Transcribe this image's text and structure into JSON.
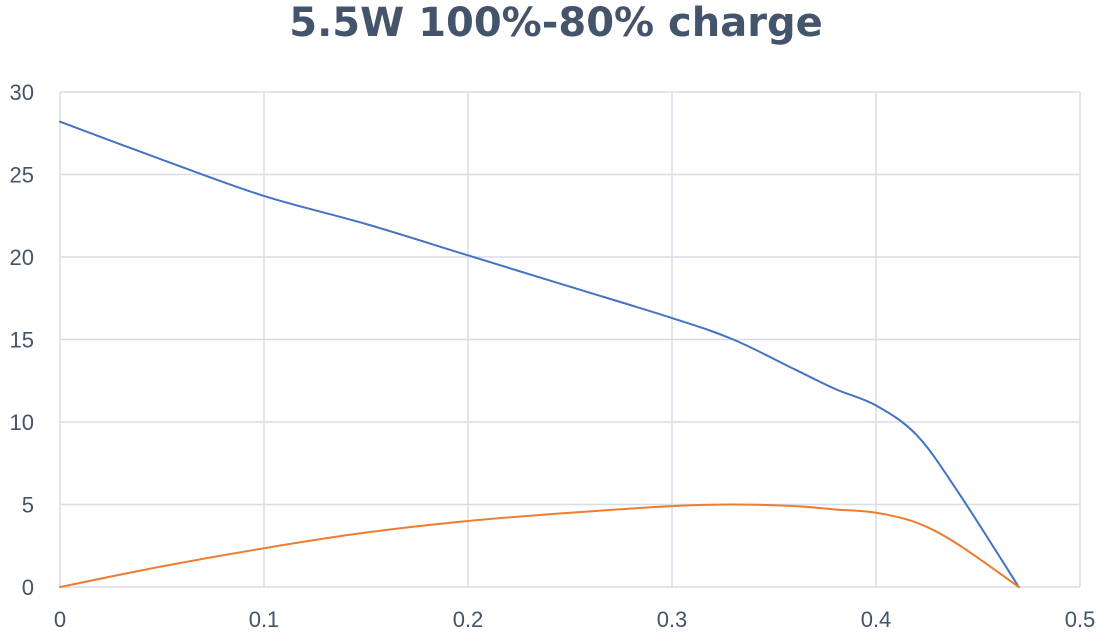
{
  "chart_data": {
    "type": "line",
    "title": "5.5W 100%-80% charge",
    "xlabel": "",
    "ylabel": "",
    "xlim": [
      0,
      0.5
    ],
    "ylim": [
      0,
      30
    ],
    "x_ticks": [
      0,
      0.1,
      0.2,
      0.3,
      0.4,
      0.5
    ],
    "y_ticks": [
      0,
      5,
      10,
      15,
      20,
      25,
      30
    ],
    "grid": true,
    "legend": "none",
    "series": [
      {
        "color": "#4472c4",
        "x": [
          0,
          0.05,
          0.1,
          0.15,
          0.2,
          0.25,
          0.3,
          0.33,
          0.36,
          0.38,
          0.4,
          0.42,
          0.44,
          0.47
        ],
        "y": [
          28.2,
          25.9,
          23.7,
          22.0,
          20.1,
          18.2,
          16.3,
          15.0,
          13.2,
          12.0,
          11.0,
          9.2,
          5.8,
          0.0
        ]
      },
      {
        "color": "#ed7d31",
        "x": [
          0,
          0.05,
          0.1,
          0.15,
          0.2,
          0.25,
          0.3,
          0.33,
          0.36,
          0.38,
          0.4,
          0.42,
          0.44,
          0.47
        ],
        "y": [
          0.0,
          1.25,
          2.35,
          3.3,
          4.0,
          4.5,
          4.9,
          5.0,
          4.9,
          4.7,
          4.5,
          3.9,
          2.6,
          0.0
        ]
      }
    ]
  }
}
